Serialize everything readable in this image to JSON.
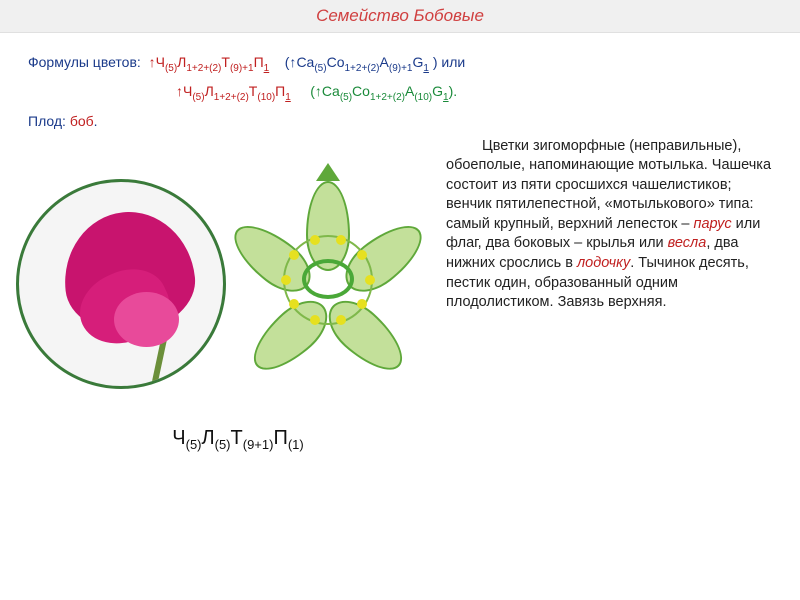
{
  "title": "Семейство Бобовые",
  "formulas": {
    "label": "Формулы цветов:",
    "cyrillic1_parts": {
      "arrow": "↑",
      "ch": "Ч",
      "ch_sub": "(5)",
      "l": "Л",
      "l_sub": "1+2+(2)",
      "t": "Т",
      "t_sub": "(9)+1",
      "p": "П",
      "p_sub": "1"
    },
    "latin1_parts": {
      "open": "(↑",
      "ca": "Ca",
      "ca_sub": "(5)",
      "co": "Co",
      "co_sub": "1+2+(2)",
      "a": "A",
      "a_sub": "(9)+1",
      "g": "G",
      "g_sub": "1",
      "close": " )"
    },
    "or": "или",
    "cyrillic2_parts": {
      "arrow": "↑",
      "ch": "Ч",
      "ch_sub": "(5)",
      "l": "Л",
      "l_sub": "1+2+(2)",
      "t": "Т",
      "t_sub": "(10)",
      "p": "П",
      "p_sub": "1"
    },
    "latin2_parts": {
      "open": "(↑",
      "ca": "Ca",
      "ca_sub": "(5)",
      "co": "Co",
      "co_sub": "1+2+(2)",
      "a": "A",
      "a_sub": "(10)",
      "g": "G",
      "g_sub": "1",
      "close": ")."
    }
  },
  "fruit": {
    "label": "Плод:",
    "value": "боб"
  },
  "description": {
    "p1a": "Цветки зигоморфные (неправильные), обоеполые, напоминающие мотылька. Чашечка состоит из пяти сросшихся чашелистиков; венчик пятилепестной, «мотылькового» типа: самый крупный, верхний лепесток – ",
    "em1": "парус",
    "p1b": " или флаг, два боковых – крылья или ",
    "em2": "весла",
    "p1c": ", два нижних срослись в ",
    "em3": "лодочку",
    "p1d": ". Тычинок десять, пестик один, образованный одним плодолистиком. Завязь верхняя."
  },
  "diagram_formula": {
    "ch": "Ч",
    "ch_sub": "(5)",
    "l": "Л",
    "l_sub": "(5)",
    "t": "Т",
    "t_sub": "(9+1)",
    "p": "П",
    "p_sub": "(1)"
  },
  "styling": {
    "title_bg": "#f0f0f0",
    "title_color": "#d04040",
    "label_color": "#1a3a8a",
    "red": "#c02020",
    "green": "#1a8a3a",
    "text_color": "#222222",
    "flower_pink_dark": "#c8146e",
    "flower_pink_mid": "#d61e7a",
    "flower_pink_light": "#e84a9a",
    "sepal_fill": "#c3e09a",
    "sepal_border": "#5fa83a",
    "stamen_color": "#e6e020",
    "pistil_color": "#4aa838",
    "body_font_size": 14.5,
    "title_font_size": 17
  },
  "stamen_angles_deg": [
    0,
    36,
    72,
    108,
    144,
    180,
    216,
    252,
    288,
    324
  ]
}
